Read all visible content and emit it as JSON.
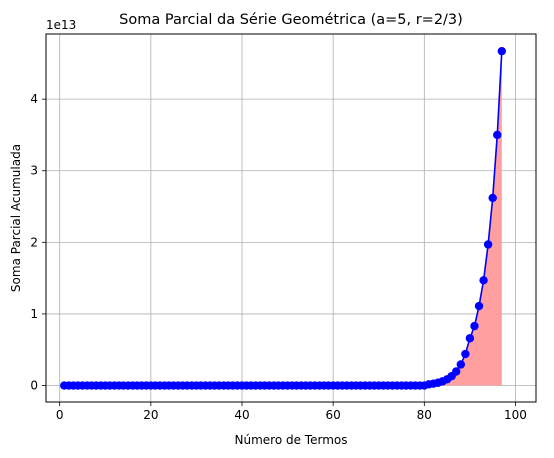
{
  "chart_data": {
    "type": "line",
    "title": "Soma Parcial da Série Geométrica (a=5, r=2/3)",
    "xlabel": "Número de Termos",
    "ylabel": "Soma Parcial Acumulada",
    "y_offset_label": "1e13",
    "xlim": [
      -3,
      104.5
    ],
    "ylim": [
      -2300000000000.0,
      49100000000000.0
    ],
    "x_ticks": [
      0,
      20,
      40,
      60,
      80,
      100
    ],
    "x_tick_labels": [
      "0",
      "20",
      "40",
      "60",
      "80",
      "100"
    ],
    "y_ticks": [
      0,
      10000000000000.0,
      20000000000000.0,
      30000000000000.0,
      40000000000000.0
    ],
    "y_tick_labels": [
      "0",
      "1",
      "2",
      "3",
      "4"
    ],
    "grid": true,
    "x_start": 1,
    "x_end": 100,
    "values": [
      0,
      0,
      0,
      0,
      0,
      0,
      0,
      0,
      0,
      0,
      0,
      0,
      0,
      0,
      0,
      0,
      0,
      0,
      0,
      0,
      0,
      0,
      0,
      0,
      0,
      0,
      0,
      0,
      0,
      0,
      0,
      0,
      0,
      0,
      0,
      0,
      0,
      0,
      0,
      0,
      0,
      0,
      0,
      0,
      0,
      0,
      0,
      0,
      0,
      0,
      0,
      0,
      0,
      0,
      0,
      0,
      0,
      0,
      0,
      0,
      0,
      0,
      0,
      0,
      0,
      0,
      0,
      0,
      0,
      0,
      0,
      0,
      0,
      0,
      0,
      0,
      0,
      0,
      0,
      0,
      170000000000.0,
      260000000000.0,
      390000000000.0,
      580000000000.0,
      870000000000.0,
      1310000000000.0,
      1960000000000.0,
      2940000000000.0,
      4400000000000.0,
      6600000000000.0,
      8300000000000.0,
      11100000000000.0,
      14700000000000.0,
      19700000000000.0,
      26200000000000.0,
      35000000000000.0,
      46700000000000.0
    ],
    "colors": {
      "line": "#0000ff",
      "marker": "#0000ff",
      "fill": "#ff9a9a",
      "grid": "#b0b0b0",
      "axes": "#000000"
    }
  }
}
